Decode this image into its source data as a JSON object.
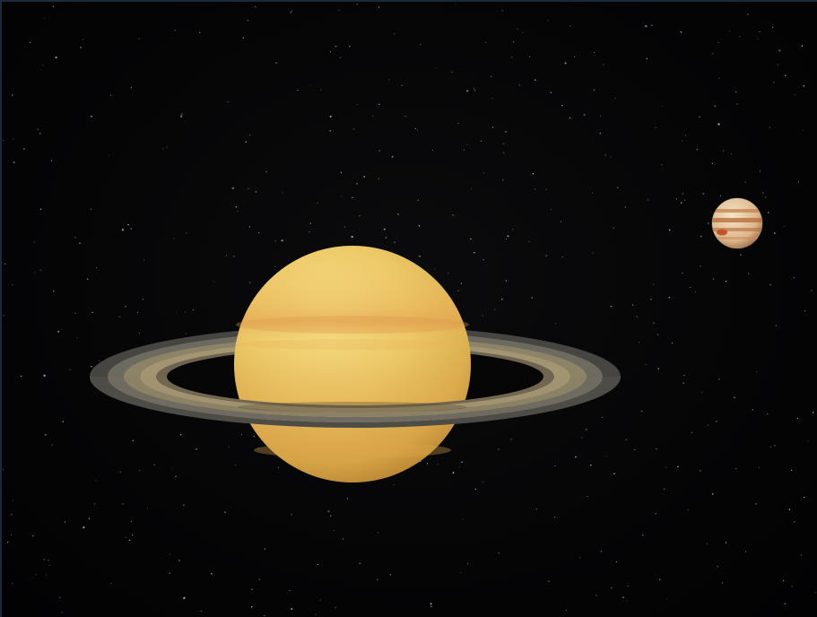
{
  "scene": {
    "background_color": "#030304",
    "objects": [
      {
        "id": "saturn",
        "name": "Saturn",
        "kind": "ringed-planet",
        "colors": {
          "body": "#e8c468",
          "band": "#d9a04a",
          "ring_outer": "#6e6a60",
          "ring_inner": "#9b8f72"
        }
      },
      {
        "id": "jupiter",
        "name": "Jupiter",
        "kind": "banded-planet",
        "colors": {
          "body": "#e7cfa6",
          "band": "#b4683a",
          "spot": "#c0552a"
        }
      }
    ],
    "starfield": {
      "visible": true
    }
  }
}
